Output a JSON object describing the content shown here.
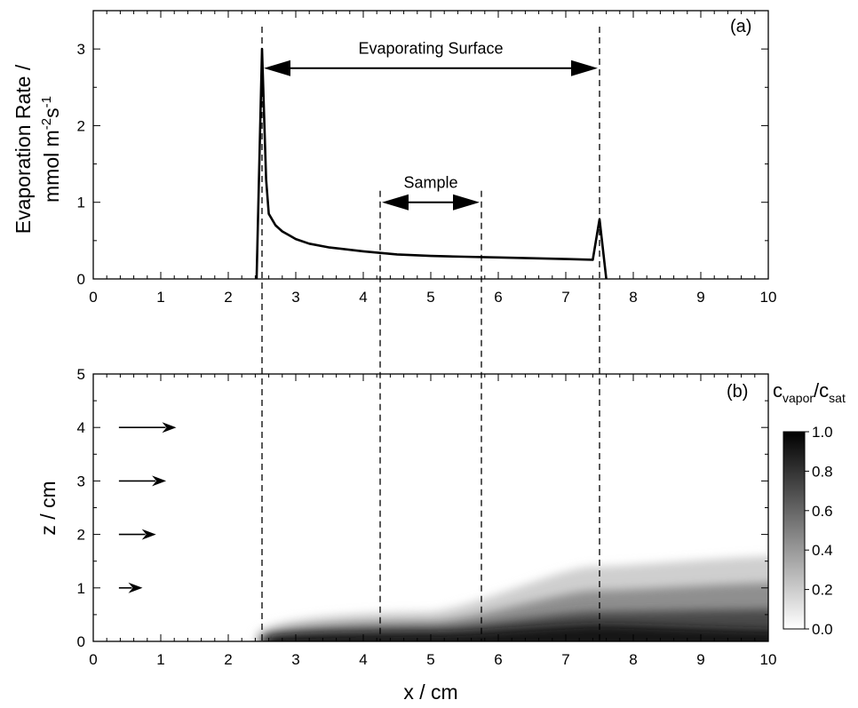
{
  "chart_data": [
    {
      "panel": "(a)",
      "type": "line",
      "ylabel_line1": "Evaporation Rate /",
      "ylabel_unit_main": "mmol m",
      "ylabel_unit_exp1": "-2",
      "ylabel_unit_mid": "s",
      "ylabel_unit_exp2": "-1",
      "xlim": [
        0,
        10
      ],
      "ylim": [
        0,
        3.5
      ],
      "x_ticks": [
        "0",
        "1",
        "2",
        "3",
        "4",
        "5",
        "6",
        "7",
        "8",
        "9",
        "10"
      ],
      "y_ticks": [
        "0",
        "1",
        "2",
        "3"
      ],
      "series": [
        {
          "x": [
            2.42,
            2.5,
            2.56,
            2.6,
            2.7,
            2.8,
            2.9,
            3.0,
            3.2,
            3.5,
            4.0,
            4.5,
            5.0,
            5.5,
            6.0,
            6.5,
            7.0,
            7.4,
            7.5,
            7.6
          ],
          "y": [
            0.0,
            3.0,
            1.3,
            0.85,
            0.7,
            0.62,
            0.57,
            0.52,
            0.46,
            0.41,
            0.36,
            0.32,
            0.3,
            0.29,
            0.28,
            0.27,
            0.26,
            0.25,
            0.78,
            0.0
          ]
        }
      ],
      "annotations": [
        {
          "text": "Evaporating Surface",
          "x_start": 2.5,
          "x_end": 7.5,
          "y": 2.75
        },
        {
          "text": "Sample",
          "x_start": 4.25,
          "x_end": 5.75,
          "y": 1.0
        }
      ]
    },
    {
      "panel": "(b)",
      "type": "heatmap",
      "xlabel": "x / cm",
      "ylabel": "z / cm",
      "xlim": [
        0,
        10
      ],
      "ylim": [
        0,
        5
      ],
      "x_ticks": [
        "0",
        "1",
        "2",
        "3",
        "4",
        "5",
        "6",
        "7",
        "8",
        "9",
        "10"
      ],
      "y_ticks": [
        "0",
        "1",
        "2",
        "3",
        "4",
        "5"
      ],
      "colorbar": {
        "label_main": "c",
        "label_sub1": "vapor",
        "label_slash": "/c",
        "label_sub2": "sat",
        "range": [
          0,
          1
        ],
        "ticks": [
          "1.0",
          "0.8",
          "0.6",
          "0.4",
          "0.2",
          "0.0"
        ],
        "color_low": "#ffffff",
        "color_high": "#000000"
      },
      "wind_arrows_z": [
        4,
        3,
        2,
        1
      ],
      "plume_layers": [
        {
          "x_start": 2.4,
          "thickness_z": [
            0.1,
            0.55,
            1.4,
            1.6
          ],
          "shade": "#cfcfcf"
        },
        {
          "x_start": 2.5,
          "thickness_z": [
            0.08,
            0.38,
            0.95,
            1.1
          ],
          "shade": "#8f8f8f"
        },
        {
          "x_start": 2.5,
          "thickness_z": [
            0.06,
            0.25,
            0.55,
            0.6
          ],
          "shade": "#4a4a4a"
        },
        {
          "x_start": 2.6,
          "thickness_z": [
            0.04,
            0.14,
            0.3,
            0.2
          ],
          "shade": "#151515"
        }
      ]
    }
  ],
  "guides": {
    "dashed_x": [
      2.5,
      4.25,
      5.75,
      7.5
    ]
  }
}
